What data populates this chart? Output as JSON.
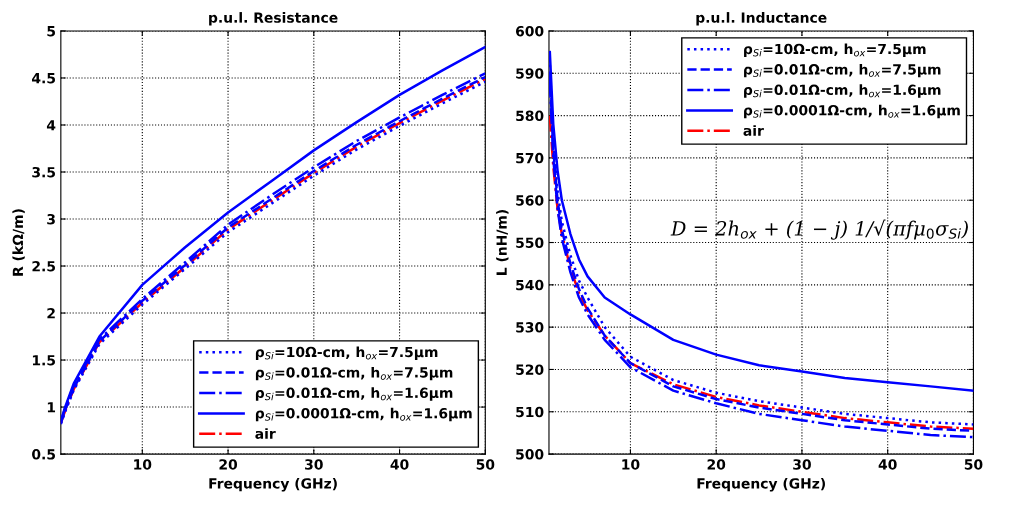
{
  "chart_data": [
    {
      "type": "line",
      "title": "p.u.l. Resistance",
      "xlabel": "Frequency (GHz)",
      "ylabel": "R (kΩ/m)",
      "x": [
        0.5,
        1,
        2,
        5,
        10,
        15,
        20,
        25,
        30,
        35,
        40,
        45,
        50
      ],
      "xlim": [
        0.5,
        50
      ],
      "xticks": [
        10,
        20,
        30,
        40,
        50
      ],
      "ylim": [
        0.5,
        5
      ],
      "yticks": [
        0.5,
        1,
        1.5,
        2,
        2.5,
        3,
        3.5,
        4,
        4.5,
        5
      ],
      "grid": true,
      "legend": "bottom right",
      "series": [
        {
          "name": "ρ$_{Si}$=10Ω-cm, h$_{ox}$=7.5μm",
          "color": "#0000ff",
          "line_style": "dotted",
          "values": [
            0.82,
            0.95,
            1.18,
            1.67,
            2.09,
            2.47,
            2.86,
            3.16,
            3.46,
            3.74,
            3.99,
            4.23,
            4.46
          ]
        },
        {
          "name": "ρ$_{Si}$=0.01Ω-cm, h$_{ox}$=7.5μm",
          "color": "#0000ff",
          "line_style": "dashed",
          "values": [
            0.83,
            0.97,
            1.2,
            1.7,
            2.13,
            2.51,
            2.91,
            3.21,
            3.51,
            3.79,
            4.04,
            4.28,
            4.51
          ]
        },
        {
          "name": "ρ$_{Si}$=0.01Ω-cm, h$_{ox}$=1.6μm",
          "color": "#0000ff",
          "line_style": "dashdot",
          "values": [
            0.84,
            0.99,
            1.22,
            1.72,
            2.15,
            2.54,
            2.94,
            3.25,
            3.55,
            3.83,
            4.08,
            4.32,
            4.55
          ]
        },
        {
          "name": "ρ$_{Si}$=0.0001Ω-cm, h$_{ox}$=1.6μm",
          "color": "#0000ff",
          "line_style": "solid",
          "values": [
            0.85,
            1.0,
            1.25,
            1.75,
            2.3,
            2.7,
            3.07,
            3.4,
            3.73,
            4.03,
            4.32,
            4.58,
            4.83
          ]
        },
        {
          "name": "air",
          "color": "#ff0000",
          "line_style": "dashdot",
          "values": [
            0.83,
            0.96,
            1.19,
            1.69,
            2.11,
            2.49,
            2.89,
            3.19,
            3.49,
            3.77,
            4.02,
            4.26,
            4.49
          ]
        }
      ]
    },
    {
      "type": "line",
      "title": "p.u.l. Inductance",
      "xlabel": "Frequency (GHz)",
      "ylabel": "L (nH/m)",
      "x": [
        0.6,
        1,
        1.5,
        2,
        3,
        4,
        5,
        7,
        10,
        15,
        20,
        25,
        30,
        35,
        40,
        45,
        50
      ],
      "xlim": [
        0.5,
        50
      ],
      "xticks": [
        10,
        20,
        30,
        40,
        50
      ],
      "ylim": [
        500,
        600
      ],
      "yticks": [
        500,
        510,
        520,
        530,
        540,
        550,
        560,
        570,
        580,
        590,
        600
      ],
      "grid": true,
      "legend": "top right",
      "annotations": [
        "D = 2h$_{ox}$ + (1 − j) 1/√(πfμ$_{0}$σ$_{Si}$)"
      ],
      "series": [
        {
          "name": "ρ$_{Si}$=10Ω-cm, h$_{ox}$=7.5μm",
          "color": "#0000ff",
          "line_style": "dotted",
          "values": [
            592,
            574,
            562,
            555,
            547,
            541,
            537,
            530,
            523,
            517.5,
            514.5,
            512.5,
            511,
            509.5,
            508.5,
            507.5,
            507
          ]
        },
        {
          "name": "ρ$_{Si}$=0.01Ω-cm, h$_{ox}$=7.5μm",
          "color": "#0000ff",
          "line_style": "dashed",
          "values": [
            590,
            572,
            560,
            553,
            545,
            539,
            534.5,
            528,
            521.5,
            516,
            513,
            511,
            509.5,
            508,
            507,
            506,
            505.5
          ]
        },
        {
          "name": "ρ$_{Si}$=0.01Ω-cm, h$_{ox}$=1.6μm",
          "color": "#0000ff",
          "line_style": "dashdot",
          "values": [
            588,
            570,
            558,
            551,
            543,
            537,
            533,
            527,
            520.5,
            515,
            512,
            509.5,
            508,
            506.5,
            505.5,
            504.5,
            504
          ]
        },
        {
          "name": "ρ$_{Si}$=0.0001Ω-cm, h$_{ox}$=1.6μm",
          "color": "#0000ff",
          "line_style": "solid",
          "values": [
            595,
            578,
            567,
            560,
            552,
            546,
            542,
            537,
            533,
            527,
            523.5,
            521,
            519.5,
            518,
            517,
            516,
            515
          ]
        },
        {
          "name": "air",
          "color": "#ff0000",
          "line_style": "dashdot",
          "values": [
            580,
            568,
            558,
            552,
            544,
            538,
            534,
            528,
            521.5,
            516.5,
            513.5,
            511.5,
            510,
            508.5,
            507.5,
            506.5,
            506
          ]
        }
      ]
    }
  ]
}
